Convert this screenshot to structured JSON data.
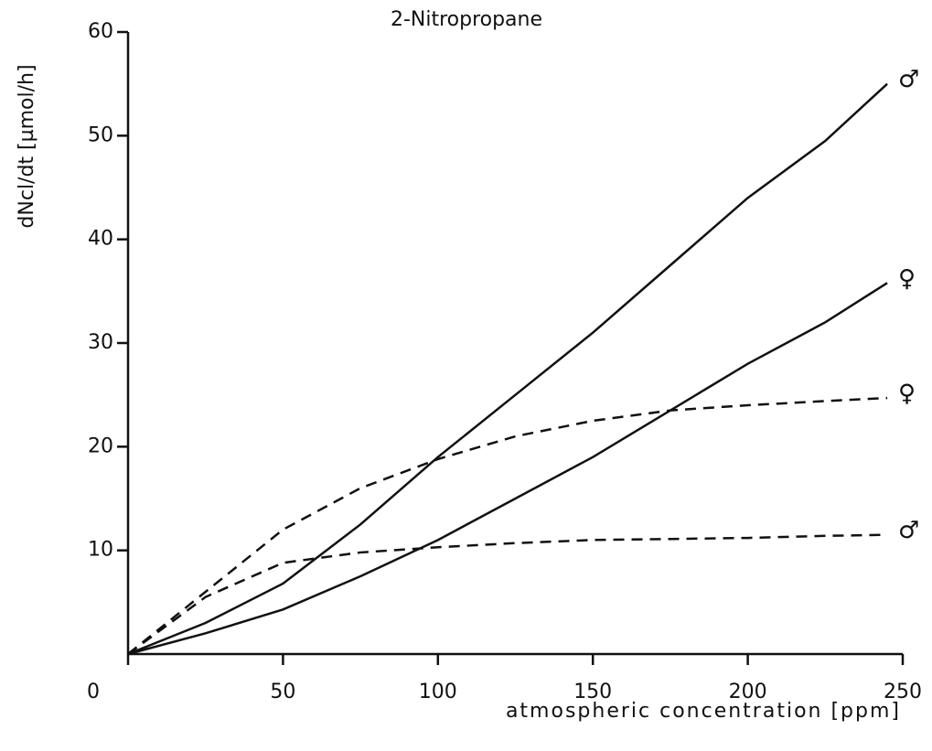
{
  "chart_data": {
    "type": "line",
    "title": "2-Nitropropane",
    "xlabel": "atmospheric concentration [ppm]",
    "ylabel": "dNcl/dt [µmol/h]",
    "x": [
      0,
      25,
      50,
      75,
      100,
      125,
      150,
      175,
      200,
      225,
      245
    ],
    "series": [
      {
        "name": "♂",
        "color": "#111111",
        "dash": false,
        "values": [
          0,
          3,
          6.8,
          12.5,
          19,
          25,
          31,
          37.5,
          44,
          49.5,
          55
        ]
      },
      {
        "name": "♀",
        "color": "#111111",
        "dash": false,
        "values": [
          0,
          2,
          4.3,
          7.5,
          11,
          15,
          19,
          23.5,
          28,
          32,
          35.8
        ]
      },
      {
        "name": "♀",
        "color": "#111111",
        "dash": true,
        "values": [
          0,
          6,
          12,
          16,
          18.8,
          21,
          22.5,
          23.5,
          24,
          24.4,
          24.7
        ]
      },
      {
        "name": "♂",
        "color": "#111111",
        "dash": true,
        "values": [
          0,
          5.5,
          8.8,
          9.8,
          10.3,
          10.7,
          11,
          11.1,
          11.2,
          11.4,
          11.5
        ]
      }
    ],
    "xlim": [
      0,
      250
    ],
    "xticks": [
      0,
      50,
      100,
      150,
      200,
      250
    ],
    "ylim": [
      0,
      60
    ],
    "yticks": [
      10,
      20,
      30,
      40,
      50,
      60
    ],
    "grid": false
  }
}
